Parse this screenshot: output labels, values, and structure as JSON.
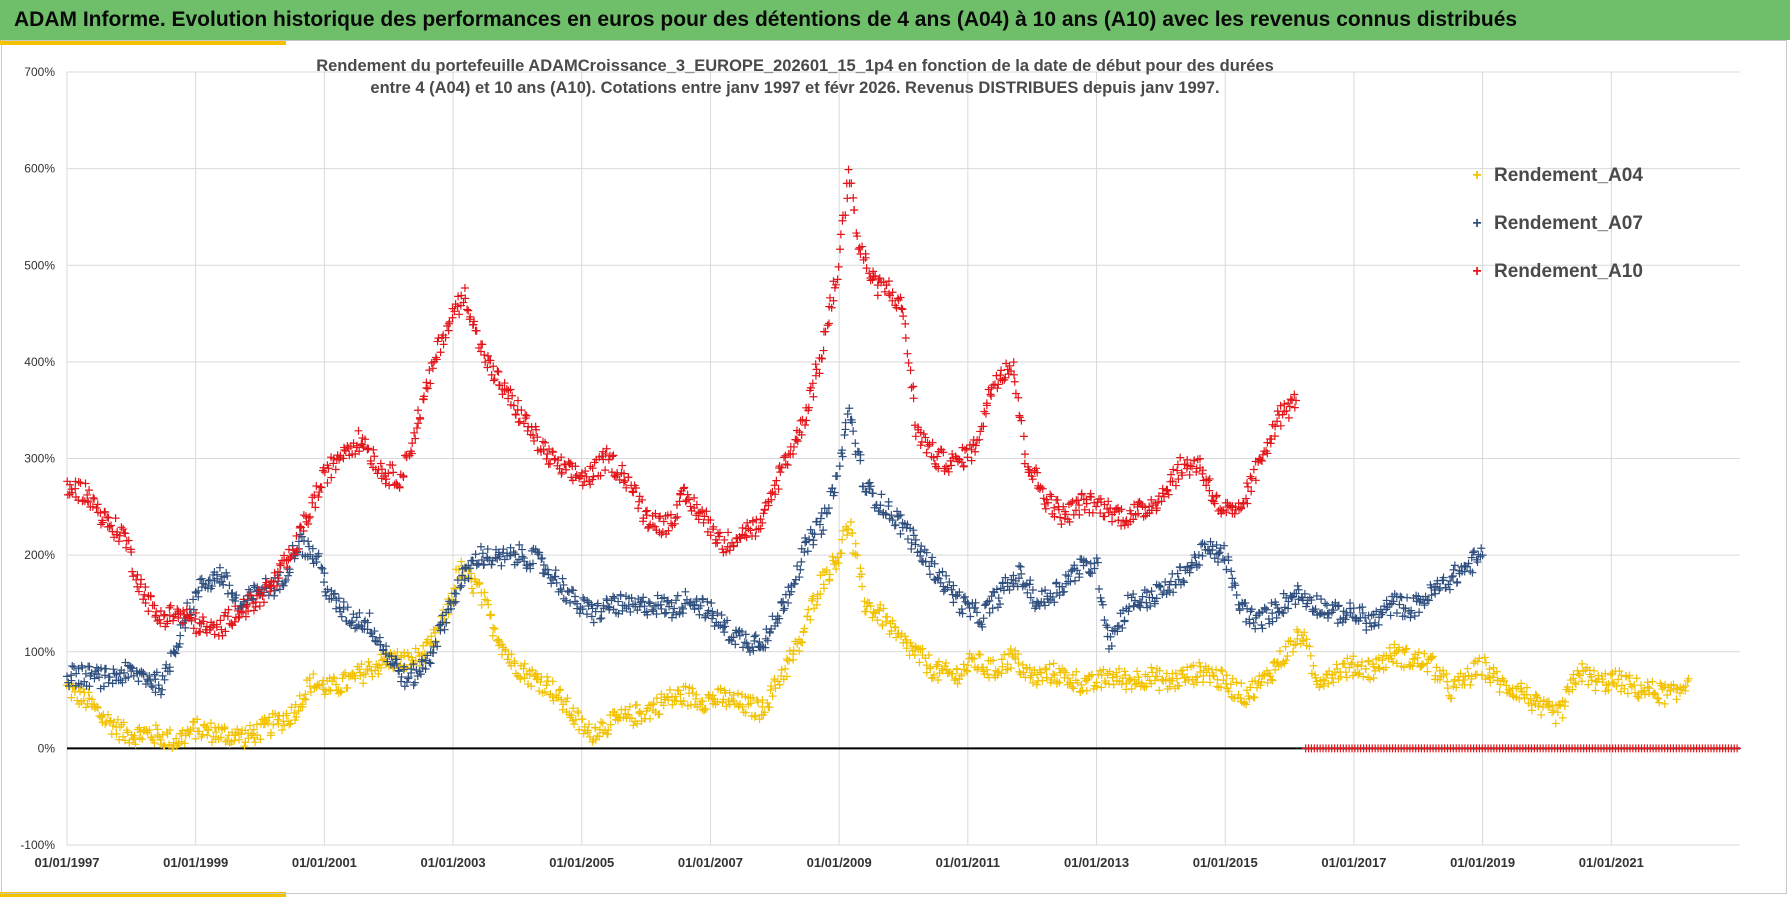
{
  "header": {
    "title": "ADAM Informe. Evolution historique des performances en euros pour des détentions de 4 ans (A04) à 10 ans (A10) avec les revenus connus distribués"
  },
  "colors": {
    "header_bg": "#6fbf6a",
    "accent": "#f2c200",
    "A04": "#f2c200",
    "A07": "#2f4f7f",
    "A10": "#e3151a",
    "zero_line": "#000000",
    "grid": "#d9d9d9"
  },
  "chart_data": {
    "type": "scatter",
    "marker": "+",
    "title_line1": "Rendement du portefeuille ADAMCroissance_3_EUROPE_202601_15_1p4  en fonction de la date de début pour des durées",
    "title_line2": "entre 4 (A04) et 10 ans (A10). Cotations entre janv 1997 et févr 2026. Revenus DISTRIBUES depuis janv 1997.",
    "x_range": [
      1997.0,
      2023.0
    ],
    "x_tick_values": [
      1997,
      1999,
      2001,
      2003,
      2005,
      2007,
      2009,
      2011,
      2013,
      2015,
      2017,
      2019,
      2021
    ],
    "x_tick_labels": [
      "01/01/1997",
      "01/01/1999",
      "01/01/2001",
      "01/01/2003",
      "01/01/2005",
      "01/01/2007",
      "01/01/2009",
      "01/01/2011",
      "01/01/2013",
      "01/01/2015",
      "01/01/2017",
      "01/01/2019",
      "01/01/2021"
    ],
    "ylim": [
      -100,
      700
    ],
    "y_tick_values": [
      -100,
      0,
      100,
      200,
      300,
      400,
      500,
      600,
      700
    ],
    "y_tick_labels": [
      "-100%",
      "0%",
      "100%",
      "200%",
      "300%",
      "400%",
      "500%",
      "600%",
      "700%"
    ],
    "legend": [
      "Rendement_A04",
      "Rendement_A07",
      "Rendement_A10"
    ],
    "series": [
      {
        "name": "Rendement_A04",
        "points": [
          [
            1997.0,
            62
          ],
          [
            1997.3,
            50
          ],
          [
            1997.6,
            30
          ],
          [
            1997.9,
            15
          ],
          [
            1998.3,
            15
          ],
          [
            1998.7,
            8
          ],
          [
            1999.0,
            20
          ],
          [
            1999.4,
            15
          ],
          [
            1999.8,
            12
          ],
          [
            2000.2,
            25
          ],
          [
            2000.5,
            35
          ],
          [
            2000.8,
            68
          ],
          [
            2001.1,
            62
          ],
          [
            2001.4,
            70
          ],
          [
            2001.7,
            82
          ],
          [
            2002.0,
            92
          ],
          [
            2002.3,
            90
          ],
          [
            2002.6,
            100
          ],
          [
            2002.9,
            140
          ],
          [
            2003.1,
            185
          ],
          [
            2003.4,
            165
          ],
          [
            2003.6,
            130
          ],
          [
            2003.9,
            90
          ],
          [
            2004.2,
            75
          ],
          [
            2004.5,
            65
          ],
          [
            2004.8,
            40
          ],
          [
            2005.1,
            15
          ],
          [
            2005.4,
            25
          ],
          [
            2005.7,
            32
          ],
          [
            2006.0,
            38
          ],
          [
            2006.3,
            50
          ],
          [
            2006.6,
            55
          ],
          [
            2006.9,
            50
          ],
          [
            2007.2,
            52
          ],
          [
            2007.5,
            45
          ],
          [
            2007.8,
            40
          ],
          [
            2008.1,
            75
          ],
          [
            2008.4,
            110
          ],
          [
            2008.7,
            170
          ],
          [
            2009.0,
            200
          ],
          [
            2009.15,
            235
          ],
          [
            2009.4,
            150
          ],
          [
            2009.7,
            135
          ],
          [
            2009.9,
            115
          ],
          [
            2010.2,
            98
          ],
          [
            2010.5,
            80
          ],
          [
            2010.8,
            75
          ],
          [
            2011.1,
            90
          ],
          [
            2011.4,
            80
          ],
          [
            2011.7,
            95
          ],
          [
            2012.0,
            72
          ],
          [
            2012.3,
            78
          ],
          [
            2012.6,
            72
          ],
          [
            2012.9,
            65
          ],
          [
            2013.2,
            75
          ],
          [
            2013.5,
            70
          ],
          [
            2013.8,
            75
          ],
          [
            2014.1,
            68
          ],
          [
            2014.4,
            75
          ],
          [
            2014.7,
            80
          ],
          [
            2015.0,
            68
          ],
          [
            2015.3,
            55
          ],
          [
            2015.6,
            70
          ],
          [
            2015.9,
            95
          ],
          [
            2016.2,
            120
          ],
          [
            2016.4,
            70
          ],
          [
            2016.7,
            80
          ],
          [
            2017.0,
            85
          ],
          [
            2017.3,
            82
          ],
          [
            2017.6,
            98
          ],
          [
            2017.9,
            92
          ],
          [
            2018.2,
            88
          ],
          [
            2018.5,
            60
          ],
          [
            2018.8,
            75
          ],
          [
            2019.0,
            85
          ],
          [
            2019.3,
            65
          ],
          [
            2019.6,
            60
          ],
          [
            2019.9,
            40
          ],
          [
            2020.2,
            35
          ],
          [
            2020.5,
            80
          ],
          [
            2020.8,
            68
          ],
          [
            2021.1,
            70
          ],
          [
            2021.4,
            62
          ],
          [
            2021.7,
            58
          ],
          [
            2022.0,
            55
          ],
          [
            2022.2,
            72
          ]
        ]
      },
      {
        "name": "Rendement_A07",
        "points": [
          [
            1997.0,
            75
          ],
          [
            1997.3,
            75
          ],
          [
            1997.6,
            72
          ],
          [
            1997.9,
            78
          ],
          [
            1998.2,
            75
          ],
          [
            1998.5,
            65
          ],
          [
            1998.8,
            130
          ],
          [
            1999.1,
            170
          ],
          [
            1999.4,
            180
          ],
          [
            1999.7,
            145
          ],
          [
            2000.0,
            165
          ],
          [
            2000.3,
            170
          ],
          [
            2000.6,
            215
          ],
          [
            2000.9,
            195
          ],
          [
            2001.1,
            155
          ],
          [
            2001.4,
            135
          ],
          [
            2001.7,
            130
          ],
          [
            2002.0,
            95
          ],
          [
            2002.3,
            70
          ],
          [
            2002.6,
            90
          ],
          [
            2002.9,
            140
          ],
          [
            2003.1,
            170
          ],
          [
            2003.4,
            200
          ],
          [
            2003.7,
            195
          ],
          [
            2004.0,
            200
          ],
          [
            2004.3,
            195
          ],
          [
            2004.6,
            175
          ],
          [
            2004.9,
            150
          ],
          [
            2005.2,
            140
          ],
          [
            2005.5,
            150
          ],
          [
            2005.8,
            145
          ],
          [
            2006.1,
            150
          ],
          [
            2006.4,
            145
          ],
          [
            2006.7,
            155
          ],
          [
            2007.0,
            140
          ],
          [
            2007.3,
            120
          ],
          [
            2007.6,
            110
          ],
          [
            2007.9,
            115
          ],
          [
            2008.2,
            160
          ],
          [
            2008.5,
            210
          ],
          [
            2008.8,
            240
          ],
          [
            2009.0,
            290
          ],
          [
            2009.15,
            350
          ],
          [
            2009.4,
            270
          ],
          [
            2009.7,
            250
          ],
          [
            2010.0,
            230
          ],
          [
            2010.3,
            200
          ],
          [
            2010.6,
            175
          ],
          [
            2010.9,
            150
          ],
          [
            2011.2,
            135
          ],
          [
            2011.5,
            160
          ],
          [
            2011.8,
            180
          ],
          [
            2012.1,
            150
          ],
          [
            2012.4,
            165
          ],
          [
            2012.7,
            185
          ],
          [
            2013.0,
            190
          ],
          [
            2013.2,
            110
          ],
          [
            2013.5,
            150
          ],
          [
            2013.8,
            155
          ],
          [
            2014.1,
            165
          ],
          [
            2014.4,
            185
          ],
          [
            2014.7,
            205
          ],
          [
            2015.0,
            200
          ],
          [
            2015.2,
            150
          ],
          [
            2015.5,
            130
          ],
          [
            2015.8,
            145
          ],
          [
            2016.1,
            160
          ],
          [
            2016.4,
            150
          ],
          [
            2016.7,
            140
          ],
          [
            2017.0,
            140
          ],
          [
            2017.3,
            130
          ],
          [
            2017.6,
            150
          ],
          [
            2017.9,
            145
          ],
          [
            2018.2,
            160
          ],
          [
            2018.5,
            175
          ],
          [
            2018.8,
            190
          ],
          [
            2019.0,
            200
          ]
        ]
      },
      {
        "name": "Rendement_A10",
        "points": [
          [
            1997.0,
            270
          ],
          [
            1997.3,
            265
          ],
          [
            1997.6,
            235
          ],
          [
            1997.9,
            220
          ],
          [
            1998.1,
            175
          ],
          [
            1998.4,
            135
          ],
          [
            1998.7,
            140
          ],
          [
            1999.0,
            130
          ],
          [
            1999.3,
            120
          ],
          [
            1999.6,
            140
          ],
          [
            1999.9,
            150
          ],
          [
            2000.2,
            170
          ],
          [
            2000.5,
            200
          ],
          [
            2000.8,
            250
          ],
          [
            2001.0,
            280
          ],
          [
            2001.3,
            310
          ],
          [
            2001.6,
            320
          ],
          [
            2001.9,
            285
          ],
          [
            2002.2,
            280
          ],
          [
            2002.5,
            350
          ],
          [
            2002.8,
            420
          ],
          [
            2003.0,
            450
          ],
          [
            2003.2,
            470
          ],
          [
            2003.4,
            420
          ],
          [
            2003.6,
            390
          ],
          [
            2003.9,
            360
          ],
          [
            2004.2,
            330
          ],
          [
            2004.5,
            300
          ],
          [
            2004.8,
            285
          ],
          [
            2005.1,
            280
          ],
          [
            2005.4,
            300
          ],
          [
            2005.7,
            280
          ],
          [
            2006.0,
            240
          ],
          [
            2006.3,
            230
          ],
          [
            2006.6,
            260
          ],
          [
            2006.9,
            240
          ],
          [
            2007.2,
            210
          ],
          [
            2007.5,
            225
          ],
          [
            2007.8,
            230
          ],
          [
            2008.1,
            290
          ],
          [
            2008.4,
            330
          ],
          [
            2008.7,
            400
          ],
          [
            2009.0,
            500
          ],
          [
            2009.15,
            600
          ],
          [
            2009.3,
            520
          ],
          [
            2009.55,
            480
          ],
          [
            2009.8,
            475
          ],
          [
            2010.0,
            450
          ],
          [
            2010.2,
            330
          ],
          [
            2010.5,
            300
          ],
          [
            2010.8,
            295
          ],
          [
            2011.1,
            310
          ],
          [
            2011.4,
            380
          ],
          [
            2011.7,
            400
          ],
          [
            2011.9,
            300
          ],
          [
            2012.2,
            260
          ],
          [
            2012.5,
            240
          ],
          [
            2012.8,
            255
          ],
          [
            2013.1,
            250
          ],
          [
            2013.4,
            240
          ],
          [
            2013.7,
            245
          ],
          [
            2014.0,
            260
          ],
          [
            2014.3,
            290
          ],
          [
            2014.6,
            295
          ],
          [
            2014.9,
            250
          ],
          [
            2015.2,
            240
          ],
          [
            2015.5,
            290
          ],
          [
            2015.8,
            340
          ],
          [
            2016.1,
            360
          ]
        ]
      }
    ],
    "zero_markers": {
      "series": "Rendement_A10",
      "x_start": 2016.25,
      "x_end": 2023.0,
      "y": 0
    }
  }
}
